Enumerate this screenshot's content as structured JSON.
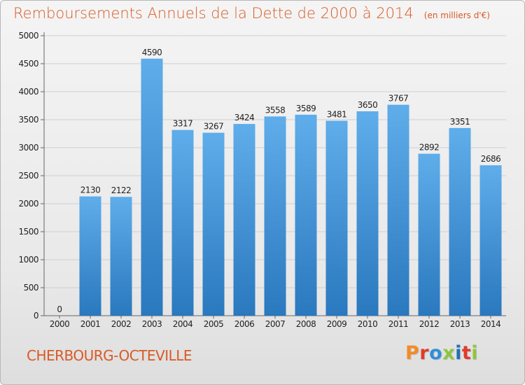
{
  "title": "Remboursements Annuels de la Dette de 2000 à 2014",
  "unit": "(en milliers d'€)",
  "footer": {
    "city": "CHERBOURG-OCTEVILLE",
    "logo": "Proxiti",
    "logo_colors": [
      "#f28c28",
      "#e03a2c",
      "#2f8fd8",
      "#8dc63f",
      "#1f6fb8",
      "#e03a2c",
      "#8dc63f"
    ]
  },
  "colors": {
    "title": "#d85a25",
    "bar_top": "#5fadea",
    "bar_bottom": "#2a78be",
    "grid": "#cfcfcf",
    "axis_text": "#222222"
  },
  "chart_data": {
    "type": "bar",
    "categories": [
      "2000",
      "2001",
      "2002",
      "2003",
      "2004",
      "2005",
      "2006",
      "2007",
      "2008",
      "2009",
      "2010",
      "2011",
      "2012",
      "2013",
      "2014"
    ],
    "values": [
      0,
      2130,
      2122,
      4590,
      3317,
      3267,
      3424,
      3558,
      3589,
      3481,
      3650,
      3767,
      2892,
      3351,
      2686
    ],
    "ylim": [
      0,
      5000
    ],
    "yticks": [
      0,
      500,
      1000,
      1500,
      2000,
      2500,
      3000,
      3500,
      4000,
      4500,
      5000
    ],
    "grid": true,
    "data_labels": true,
    "xlabel": "",
    "ylabel": ""
  }
}
